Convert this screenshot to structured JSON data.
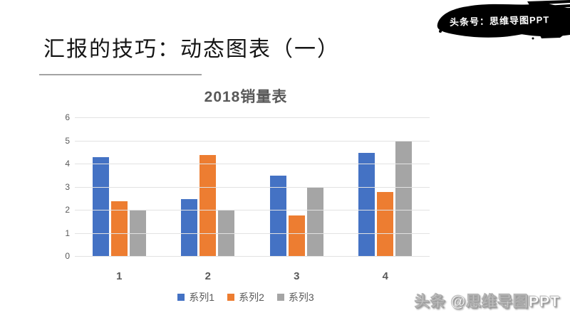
{
  "slide": {
    "title": "汇报的技巧：动态图表（一）",
    "badge": "头条号：思维导图PPT",
    "watermark": "头条 @思维导图PPT"
  },
  "colors": {
    "series1": "#4472C4",
    "series2": "#ED7D31",
    "series3": "#A5A5A5",
    "axis_text": "#595959",
    "gridline": "#E2E2E2",
    "chart_title_text": "#595959",
    "badge_bg": "#000000",
    "badge_text": "#FFFFFF"
  },
  "chart_data": {
    "type": "bar",
    "title": "2018销量表",
    "categories": [
      "1",
      "2",
      "3",
      "4"
    ],
    "series": [
      {
        "name": "系列1",
        "color": "#4472C4",
        "values": [
          4.3,
          2.5,
          3.5,
          4.5
        ]
      },
      {
        "name": "系列2",
        "color": "#ED7D31",
        "values": [
          2.4,
          4.4,
          1.8,
          2.8
        ]
      },
      {
        "name": "系列3",
        "color": "#A5A5A5",
        "values": [
          2.0,
          2.0,
          3.0,
          5.0
        ]
      }
    ],
    "ylim": [
      0,
      6
    ],
    "yticks": [
      0,
      1,
      2,
      3,
      4,
      5,
      6
    ],
    "grid": true,
    "legend_position": "bottom"
  }
}
